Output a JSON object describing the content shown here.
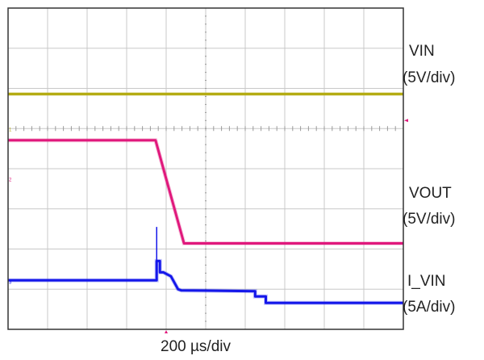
{
  "chart_data": {
    "type": "line",
    "grid": {
      "x_divisions": 10,
      "y_divisions": 8,
      "minor_ticks_per_div": 5
    },
    "timebase": "200 µs/div",
    "units": {
      "x": "div",
      "y": "div"
    },
    "series": [
      {
        "name": "VIN",
        "scale": "(5V/div)",
        "color": "#b5ac14",
        "marker": "1",
        "x": [
          0,
          10
        ],
        "y": [
          5.86,
          5.86
        ]
      },
      {
        "name": "VOUT",
        "scale": "(5V/div)",
        "color": "#e0197c",
        "marker": "2",
        "x": [
          0,
          3.73,
          4.45,
          10
        ],
        "y": [
          4.71,
          4.71,
          2.14,
          2.14
        ]
      },
      {
        "name": "I_VIN",
        "scale": "(5A/div)",
        "color": "#1517ea",
        "marker": "3",
        "x": [
          0,
          3.76,
          3.76,
          3.84,
          3.84,
          3.93,
          4.12,
          4.3,
          4.38,
          6.25,
          6.25,
          6.52,
          6.52,
          10
        ],
        "y": [
          1.22,
          1.22,
          1.7,
          1.7,
          1.42,
          1.42,
          1.32,
          1.0,
          0.97,
          0.95,
          0.82,
          0.82,
          0.66,
          0.66
        ]
      }
    ],
    "ground_level_div": 5,
    "trigger_marker_color": "#e0197c"
  },
  "labels": {
    "vin_name": "VIN",
    "vin_scale": "(5V/div)",
    "vout_name": "VOUT",
    "vout_scale": "(5V/div)",
    "ivin_name": "I_VIN",
    "ivin_scale": "(5A/div)",
    "timebase": "200 µs/div"
  }
}
